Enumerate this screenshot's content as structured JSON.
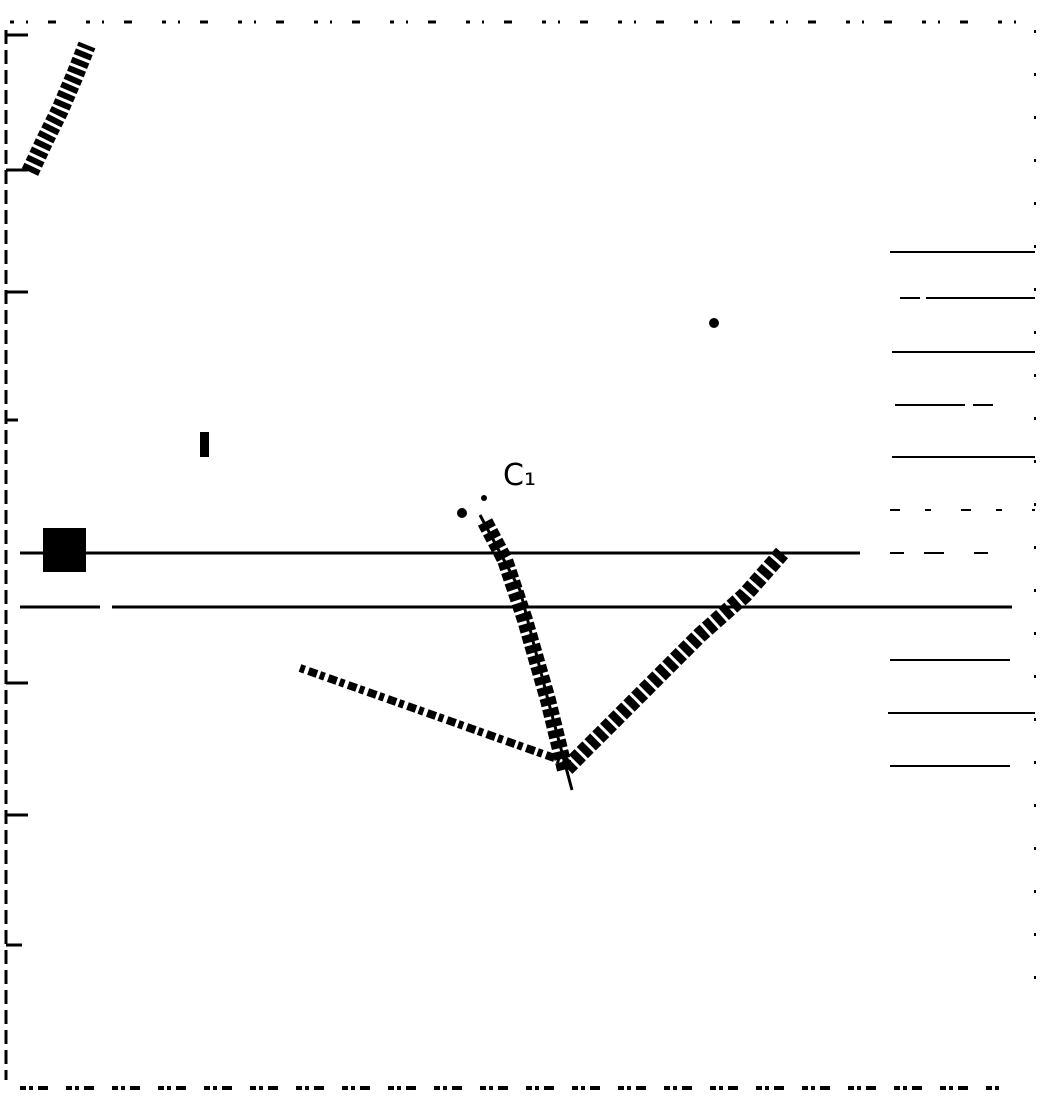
{
  "label": "C₁"
}
